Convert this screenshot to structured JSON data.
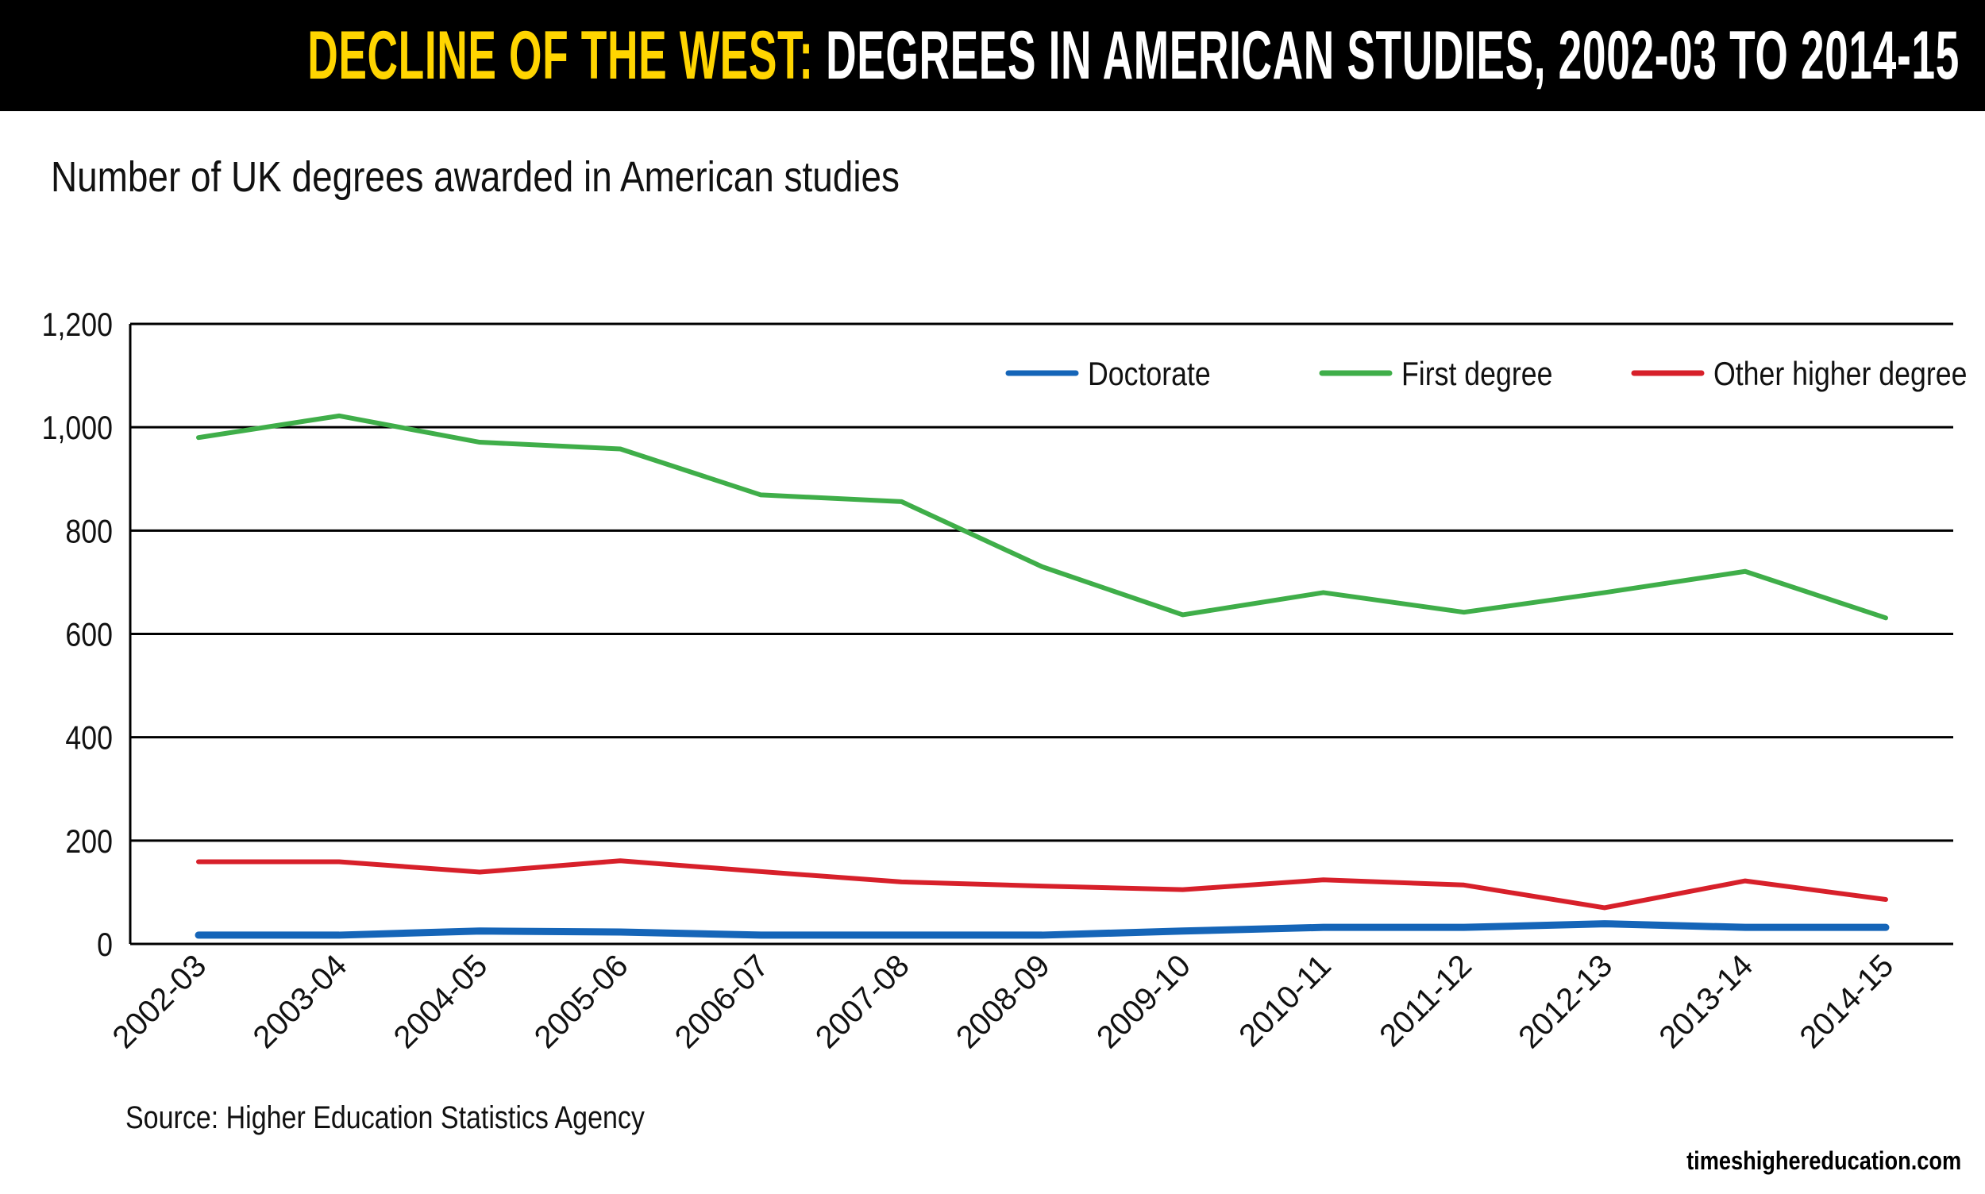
{
  "header": {
    "title_highlight": "DECLINE OF THE WEST:",
    "title_rest": " DEGREES IN AMERICAN STUDIES, 2002-03 TO 2014-15"
  },
  "subtitle": "Number of UK degrees awarded in American studies",
  "source": "Source: Higher Education Statistics Agency",
  "site": "timeshighereducation.com",
  "chart_data": {
    "type": "line",
    "title": "Number of UK degrees awarded in American studies",
    "xlabel": "",
    "ylabel": "",
    "ylim": [
      0,
      1200
    ],
    "yticks": [
      "0",
      "200",
      "400",
      "600",
      "800",
      "1,000",
      "1,200"
    ],
    "ytick_values": [
      0,
      200,
      400,
      600,
      800,
      1000,
      1200
    ],
    "grid": true,
    "legend_position": "top-right",
    "categories": [
      "2002-03",
      "2003-04",
      "2004-05",
      "2005-06",
      "2006-07",
      "2007-08",
      "2008-09",
      "2009-10",
      "2010-11",
      "2011-12",
      "2012-13",
      "2013-14",
      "2014-15"
    ],
    "series": [
      {
        "name": "Doctorate",
        "color": "#1565b8",
        "values": [
          17,
          17,
          25,
          23,
          17,
          17,
          17,
          25,
          32,
          32,
          39,
          32,
          32
        ]
      },
      {
        "name": "First degree",
        "color": "#3fae49",
        "values": [
          980,
          1022,
          971,
          958,
          869,
          856,
          730,
          637,
          680,
          642,
          680,
          721,
          631
        ]
      },
      {
        "name": "Other higher degree",
        "color": "#d7202a",
        "values": [
          159,
          159,
          139,
          161,
          140,
          120,
          112,
          105,
          124,
          114,
          70,
          122,
          86
        ]
      }
    ]
  }
}
